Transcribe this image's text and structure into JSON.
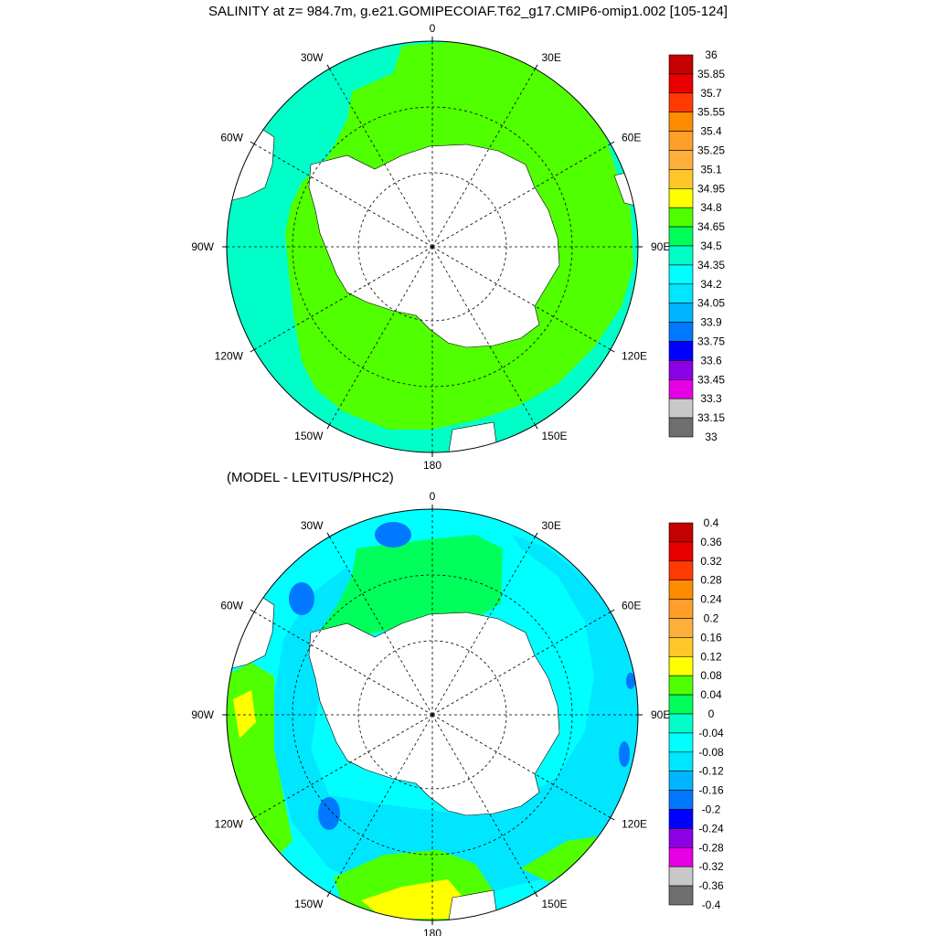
{
  "title": "SALINITY at z= 984.7m, g.e21.GOMIPECOIAF.T62_g17.CMIP6-omip1.002 [105-124]",
  "subtitle": "(MODEL - LEVITUS/PHC2)",
  "longitude_labels": [
    "0",
    "30E",
    "60E",
    "90E",
    "120E",
    "150E",
    "180",
    "150W",
    "120W",
    "90W",
    "60W",
    "30W"
  ],
  "colors": {
    "land": "#ffffff",
    "grid": "#000000"
  },
  "top_map": {
    "colorbar": {
      "labels": [
        "36",
        "35.85",
        "35.7",
        "35.55",
        "35.4",
        "35.25",
        "35.1",
        "34.95",
        "34.8",
        "34.65",
        "34.5",
        "34.35",
        "34.2",
        "34.05",
        "33.9",
        "33.75",
        "33.6",
        "33.45",
        "33.3",
        "33.15",
        "33"
      ],
      "colors": [
        "#c40000",
        "#e80000",
        "#ff3a00",
        "#ff8c00",
        "#ff9e28",
        "#ffb03c",
        "#ffc828",
        "#ffff00",
        "#50ff00",
        "#00ff5a",
        "#00ffc8",
        "#00ffff",
        "#00e6ff",
        "#00b4ff",
        "#0078ff",
        "#0000ff",
        "#8c00e6",
        "#e600e6",
        "#c8c8c8",
        "#6e6e6e"
      ]
    },
    "regions": {
      "ocean_base": "#00ffc8",
      "circumpolar": "#50ff00",
      "atlantic": "#50ff00"
    }
  },
  "bottom_map": {
    "colorbar": {
      "labels": [
        "0.4",
        "0.36",
        "0.32",
        "0.28",
        "0.24",
        "0.2",
        "0.16",
        "0.12",
        "0.08",
        "0.04",
        "0",
        "-0.04",
        "-0.08",
        "-0.12",
        "-0.16",
        "-0.2",
        "-0.24",
        "-0.28",
        "-0.32",
        "-0.36",
        "-0.4"
      ],
      "colors": [
        "#c40000",
        "#e80000",
        "#ff3a00",
        "#ff8c00",
        "#ff9e28",
        "#ffb03c",
        "#ffc828",
        "#ffff00",
        "#50ff00",
        "#00ff5a",
        "#00ffc8",
        "#00ffff",
        "#00e6ff",
        "#00b4ff",
        "#0078ff",
        "#0000ff",
        "#8c00e6",
        "#e600e6",
        "#c8c8c8",
        "#6e6e6e"
      ]
    },
    "regions": {
      "ocean_base": "#00ffff",
      "weddell": "#00ff5a",
      "coastal": "#00e6ff",
      "positive": "#50ff00",
      "high": "#ffff00",
      "low": "#0078ff"
    }
  }
}
